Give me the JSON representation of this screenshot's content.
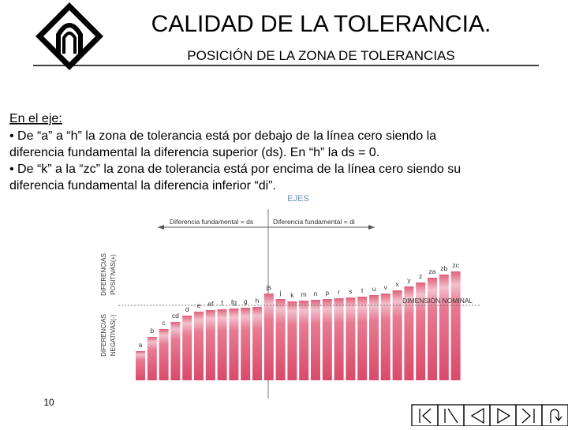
{
  "header": {
    "title": "CALIDAD DE LA TOLERANCIA.",
    "subtitle": "POSICIÓN DE LA ZONA DE TOLERANCIAS"
  },
  "body": {
    "heading": "En el eje:",
    "lines": [
      "• De “a” a “h” la zona de tolerancia está por debajo de la línea cero siendo la",
      "diferencia fundamental la diferencia superior (ds). En “h” la ds = 0.",
      "• De “k” a la “zc” la zona de tolerancia está por encima de la línea cero siendo su",
      "diferencia fundamental la diferencia inferior “di”."
    ]
  },
  "diagram": {
    "axes_label": "EJES",
    "left_arrow": "Diferencia fundamental = ds",
    "right_arrow": "Diferencia fundamental = di",
    "nominal": "DIMENSIÓN NOMINAL",
    "positive": [
      "DIFERENCIAS",
      "POSITIVAS(+)"
    ],
    "negative": [
      "DIFERENCIAS",
      "NEGATIVAS(-)"
    ],
    "letters": [
      "a",
      "b",
      "c",
      "cd",
      "d",
      "e",
      "ef",
      "f",
      "fg",
      "g",
      "h",
      "js",
      "j",
      "k",
      "m",
      "n",
      "p",
      "r",
      "s",
      "t",
      "u",
      "v",
      "x",
      "y",
      "z",
      "za",
      "zb",
      "zc"
    ]
  },
  "footer": {
    "page": "10"
  }
}
